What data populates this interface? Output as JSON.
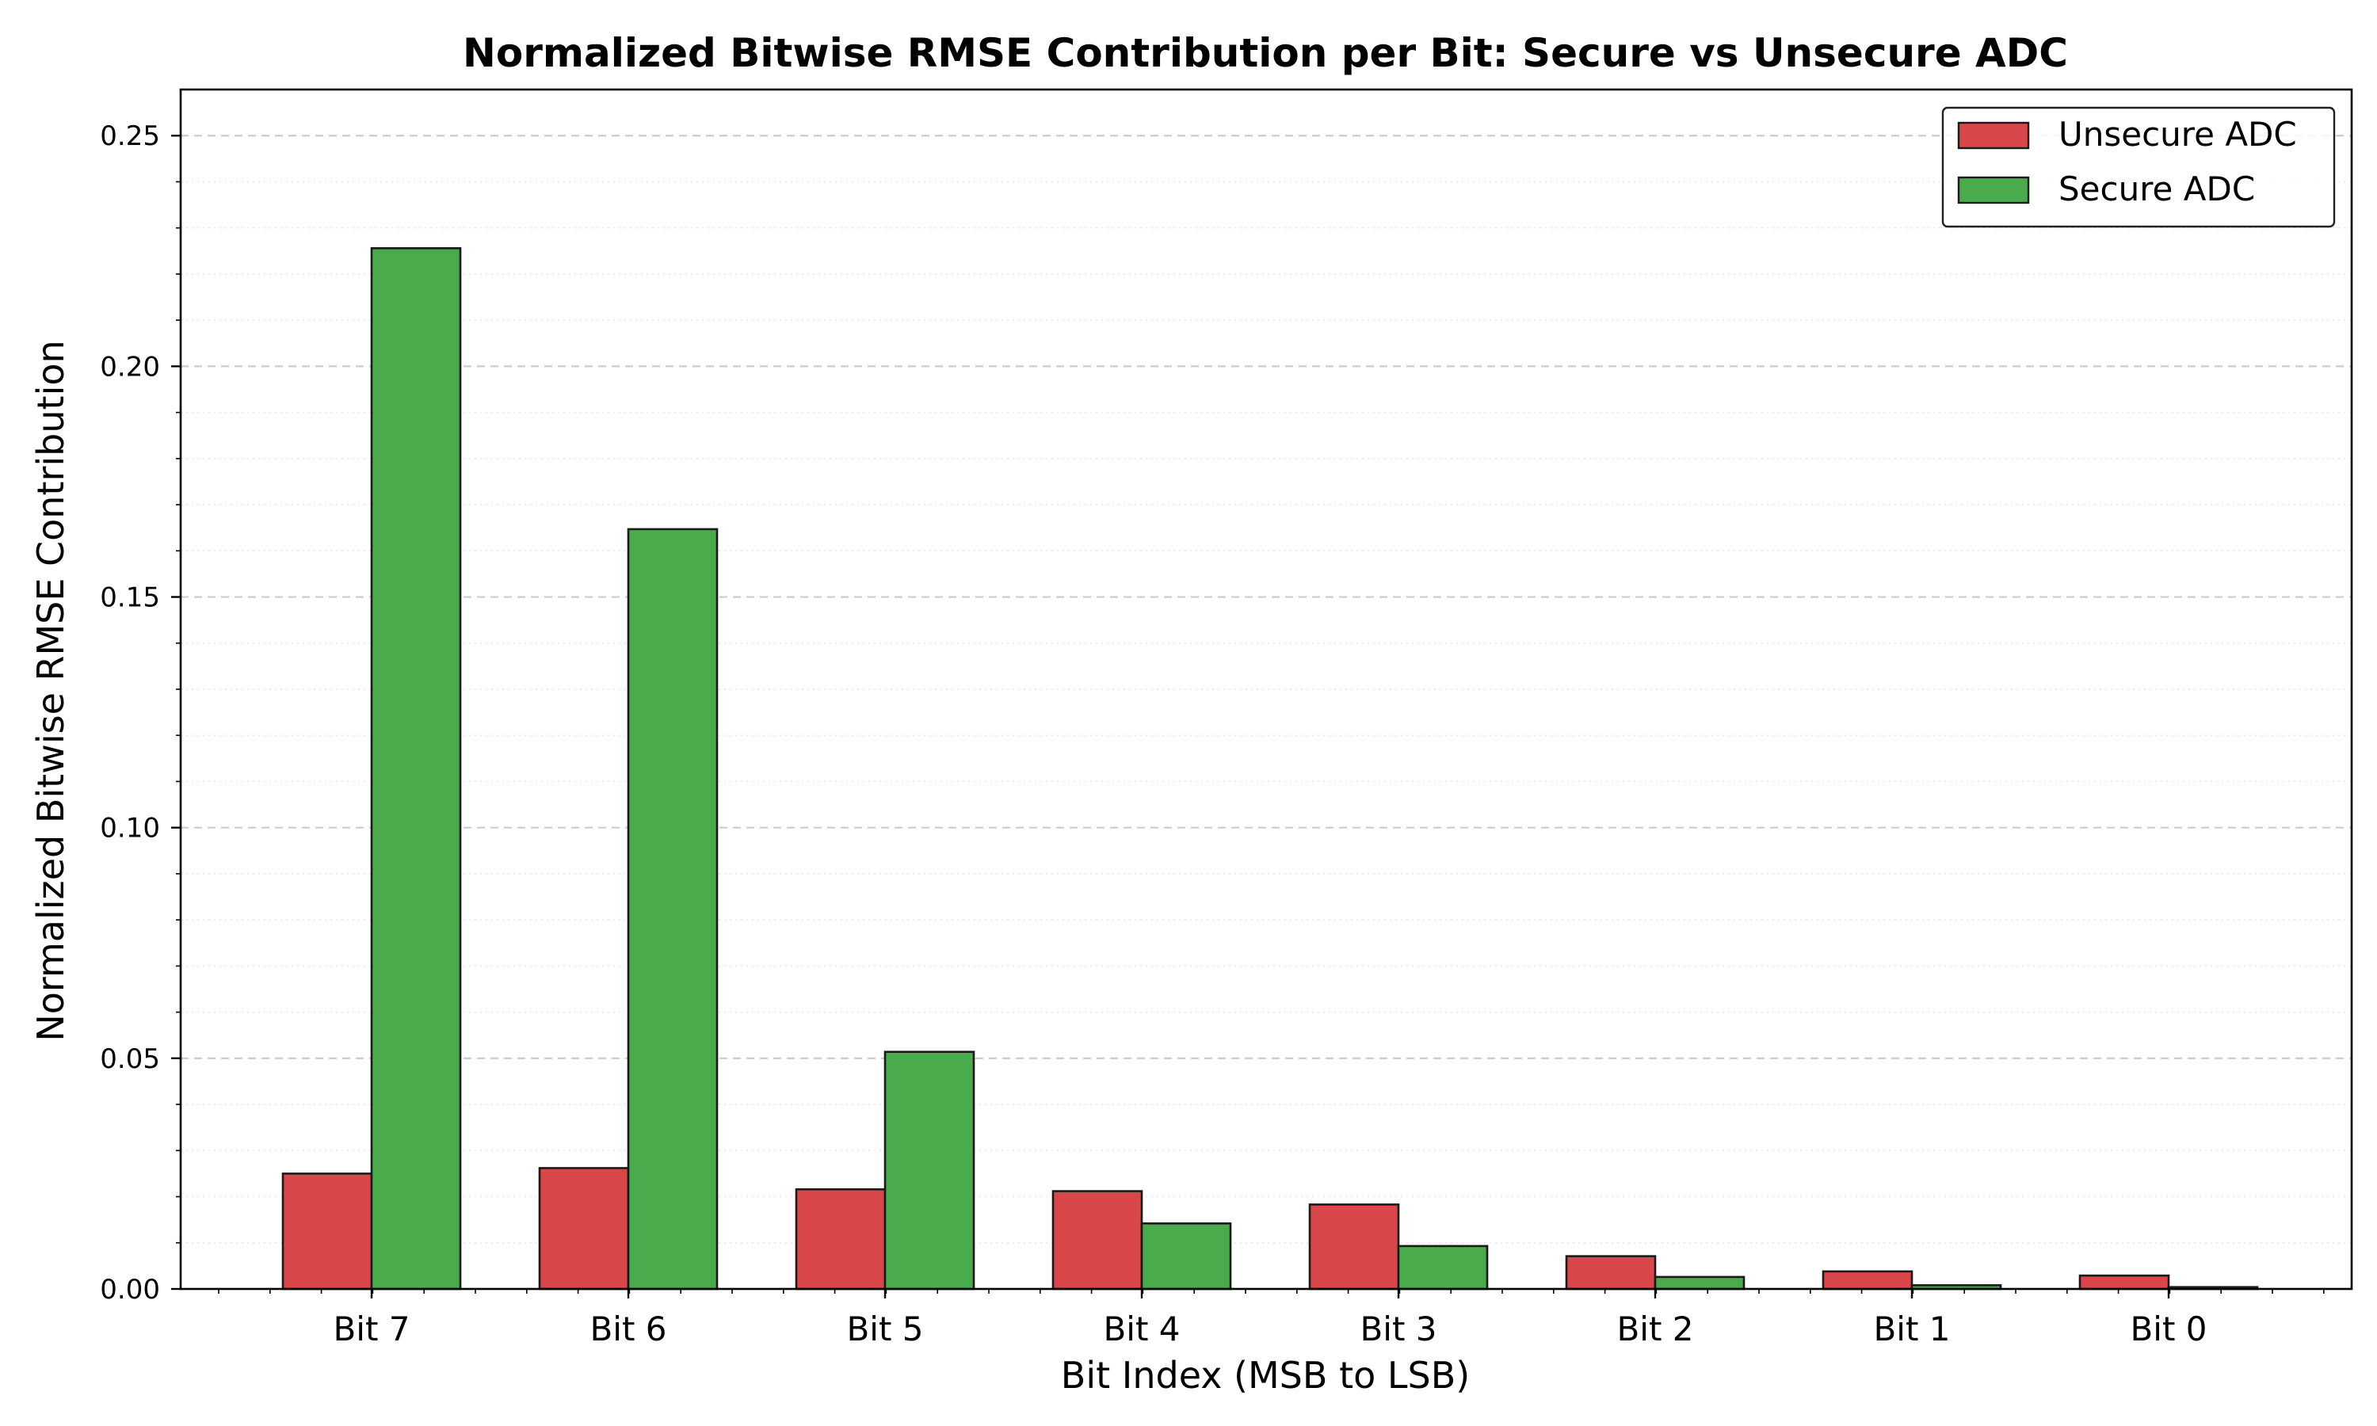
{
  "chart_data": {
    "type": "bar",
    "title": "Normalized Bitwise RMSE Contribution per Bit: Secure vs Unsecure ADC",
    "xlabel": "Bit Index (MSB to LSB)",
    "ylabel": "Normalized Bitwise RMSE Contribution",
    "categories": [
      "Bit 7",
      "Bit 6",
      "Bit 5",
      "Bit 4",
      "Bit 3",
      "Bit 2",
      "Bit 1",
      "Bit 0"
    ],
    "ylim": [
      0,
      0.26
    ],
    "yticks": [
      0.0,
      0.05,
      0.1,
      0.15,
      0.2,
      0.25
    ],
    "ytick_labels": [
      "0.00",
      "0.05",
      "0.10",
      "0.15",
      "0.20",
      "0.25"
    ],
    "grid": "major dashed, minor dotted (y)",
    "legend_position": "top-right",
    "series": [
      {
        "name": "Unsecure ADC",
        "color": "#d9474a",
        "values": [
          0.025,
          0.0262,
          0.0216,
          0.0212,
          0.0183,
          0.0071,
          0.0038,
          0.0029
        ]
      },
      {
        "name": "Secure ADC",
        "color": "#4aab4c",
        "values": [
          0.2256,
          0.1647,
          0.0514,
          0.0142,
          0.0093,
          0.0026,
          0.0008,
          0.0004
        ]
      }
    ]
  }
}
